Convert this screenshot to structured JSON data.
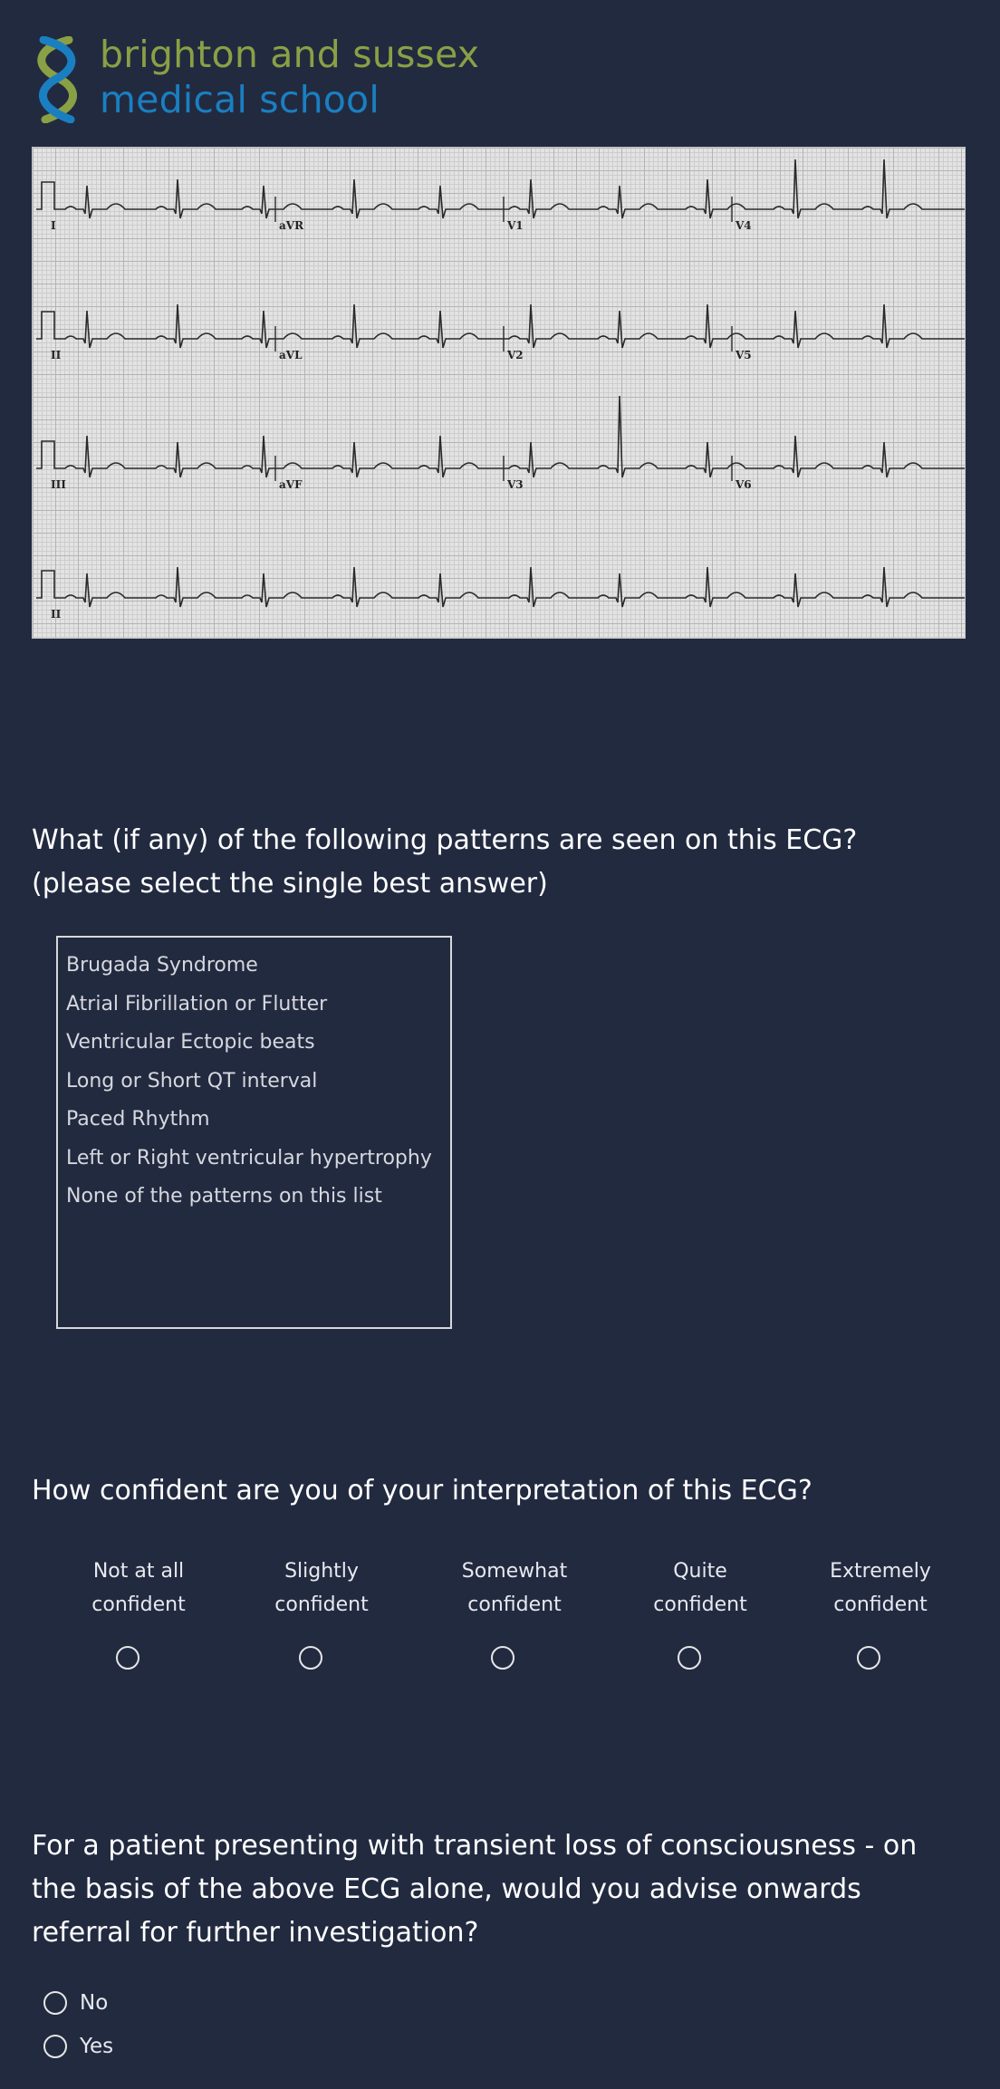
{
  "logo": {
    "line1": "brighton and sussex",
    "line2": "medical school"
  },
  "ecg": {
    "leads": [
      "I",
      "aVR",
      "V1",
      "V4",
      "II",
      "aVL",
      "V2",
      "V5",
      "III",
      "aVF",
      "V3",
      "V6",
      "II"
    ]
  },
  "questions": {
    "q1": {
      "line1": "What (if any) of the following patterns are seen on this ECG?",
      "line2": "(please select the single best answer)",
      "options": [
        "Brugada Syndrome",
        "Atrial Fibrillation or Flutter",
        "Ventricular Ectopic beats",
        "Long or Short QT interval",
        "Paced Rhythm",
        "Left or Right ventricular hypertrophy",
        "None of the patterns on this list"
      ]
    },
    "q2": {
      "text": "How confident are you of your interpretation of this ECG?",
      "scale": [
        {
          "line1": "Not at all",
          "line2": "confident"
        },
        {
          "line1": "Slightly",
          "line2": "confident"
        },
        {
          "line1": "Somewhat",
          "line2": "confident"
        },
        {
          "line1": "Quite",
          "line2": "confident"
        },
        {
          "line1": "Extremely",
          "line2": "confident"
        }
      ]
    },
    "q3": {
      "line1": "For a patient presenting with transient loss of consciousness - on",
      "line2": "the basis of the above ECG alone, would you advise onwards",
      "line3": "referral for further investigation?",
      "options": [
        "No",
        "Yes"
      ]
    }
  },
  "colors": {
    "background": "#222a40",
    "logo_green": "#8aa044",
    "logo_blue": "#1a7fc1"
  }
}
